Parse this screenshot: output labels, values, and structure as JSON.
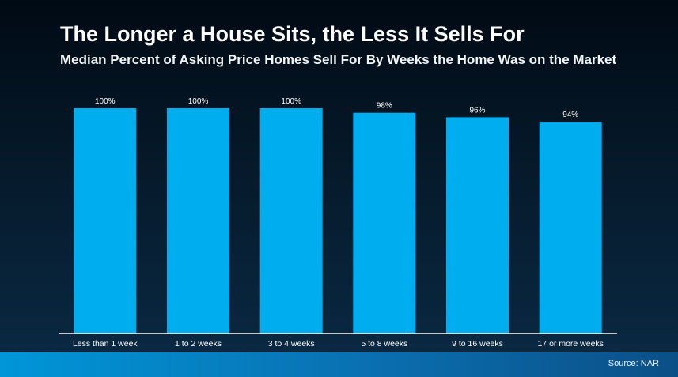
{
  "header": {
    "title": "The Longer a House Sits, the Less It Sells For",
    "subtitle": "Median Percent of Asking Price Homes Sell For By Weeks the Home Was on the Market"
  },
  "footer": {
    "source": "Source: NAR"
  },
  "colors": {
    "bar": "#00aeef",
    "axis": "#ffffff",
    "label": "#ffffff"
  },
  "chart_data": {
    "type": "bar",
    "categories": [
      "Less than 1 week",
      "1 to 2 weeks",
      "3 to 4 weeks",
      "5 to 8 weeks",
      "9 to 16 weeks",
      "17 or more weeks"
    ],
    "values": [
      100,
      100,
      100,
      98,
      96,
      94
    ],
    "data_labels": [
      "100%",
      "100%",
      "100%",
      "98%",
      "96%",
      "94%"
    ],
    "title": "The Longer a House Sits, the Less It Sells For",
    "subtitle": "Median Percent of Asking Price Homes Sell For By Weeks the Home Was on the Market",
    "xlabel": "",
    "ylabel": "",
    "unit": "%",
    "grid": false,
    "legend": "none"
  }
}
